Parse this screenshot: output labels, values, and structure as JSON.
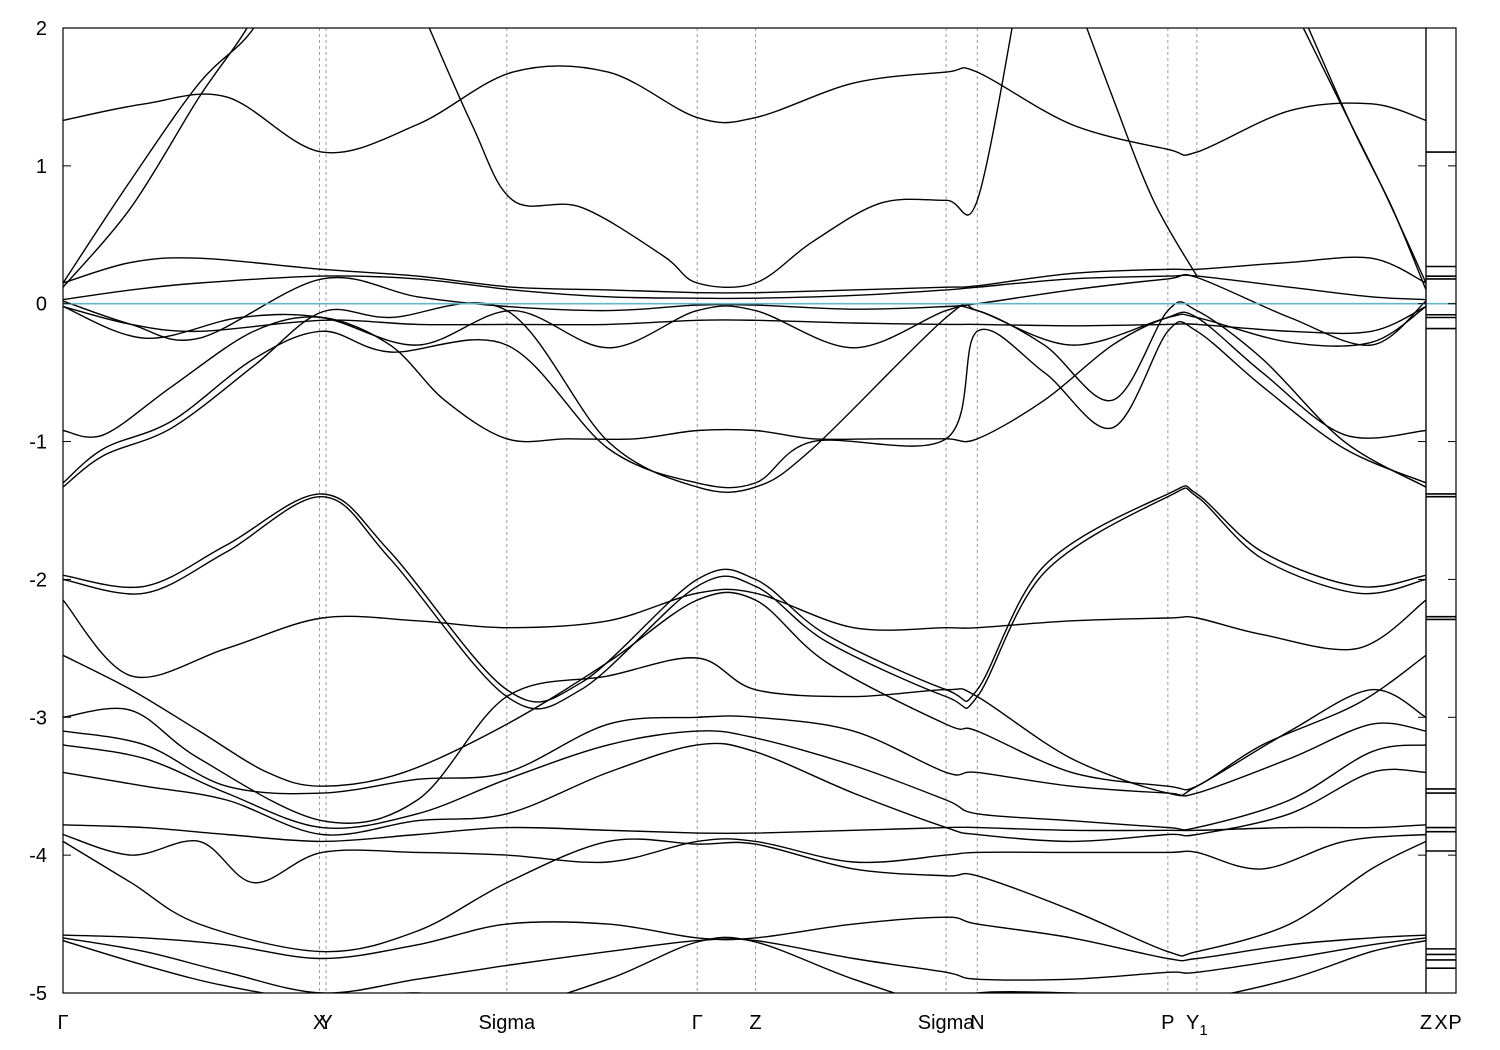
{
  "chart_data": {
    "type": "line",
    "title": "",
    "xlabel": "",
    "ylabel": "",
    "ylim": [
      -5,
      2
    ],
    "y_ticks": [
      2,
      1,
      0,
      -1,
      -2,
      -3,
      -4,
      -5
    ],
    "fermi_level": 0,
    "colors": {
      "bands": "#000000",
      "fermi": "#5fb8c9",
      "kpath_lines": "#9a9a9a"
    },
    "kpoints": [
      {
        "label": "Γ",
        "x": 0.0
      },
      {
        "label": "X",
        "x": 0.1882
      },
      {
        "label": "Y",
        "x": 0.193
      },
      {
        "label": "Sigma",
        "x": 0.3256
      },
      {
        "label": "Γ",
        "x": 0.4653
      },
      {
        "label": "Z",
        "x": 0.5081
      },
      {
        "label": "Sigma",
        "x": 0.6479
      },
      {
        "label": "N",
        "x": 0.6708
      },
      {
        "label": "P",
        "x": 0.8106
      },
      {
        "label": "Y",
        "x": 0.8319,
        "subscript": "1"
      },
      {
        "label": "Z",
        "x": 1.0
      }
    ],
    "dos_panel_labels": [
      "X",
      "P"
    ],
    "dos_levels": [
      1.1,
      0.27,
      0.2,
      0.18,
      -0.08,
      -0.1,
      -0.18,
      -1.38,
      -1.4,
      -2.27,
      -2.29,
      -3.52,
      -3.55,
      -3.8,
      -3.83,
      -3.97,
      -4.68,
      -4.72,
      -4.76,
      -4.82
    ],
    "series": [
      {
        "x": [
          0,
          0.06,
          0.12,
          0.19,
          0.26,
          0.33,
          0.4,
          0.4653,
          0.5081,
          0.58,
          0.6479,
          0.6708,
          0.74,
          0.8106,
          0.8319,
          0.9,
          0.96,
          1.0
        ],
        "y": [
          1.33,
          1.45,
          1.5,
          1.1,
          1.3,
          1.68,
          1.68,
          1.35,
          1.35,
          1.6,
          1.68,
          1.68,
          1.3,
          1.12,
          1.1,
          1.4,
          1.45,
          1.33
        ]
      },
      {
        "x": [
          0,
          0.05,
          0.1,
          0.14,
          0.17
        ],
        "y": [
          0.15,
          0.9,
          1.6,
          2.0,
          2.6
        ]
      },
      {
        "x": [
          0,
          0.05,
          0.1,
          0.135,
          0.16
        ],
        "y": [
          0.12,
          0.7,
          1.5,
          2.0,
          2.5
        ]
      },
      {
        "x": [
          0.26,
          0.3,
          0.33,
          0.38,
          0.44,
          0.4653,
          0.5081,
          0.55,
          0.6,
          0.6479,
          0.6708,
          0.7
        ],
        "y": [
          2.2,
          1.3,
          0.75,
          0.7,
          0.35,
          0.15,
          0.15,
          0.45,
          0.73,
          0.75,
          0.75,
          2.2
        ]
      },
      {
        "x": [
          0.74,
          0.77,
          0.8,
          0.8319
        ],
        "y": [
          2.3,
          1.5,
          0.75,
          0.2
        ]
      },
      {
        "x": [
          0.9,
          0.94,
          0.97,
          1.0
        ],
        "y": [
          2.2,
          1.4,
          0.8,
          0.15
        ]
      },
      {
        "x": [
          0.905,
          0.945,
          0.975,
          1.0
        ],
        "y": [
          2.2,
          1.3,
          0.7,
          0.1
        ]
      },
      {
        "x": [
          0,
          0.05,
          0.1,
          0.19,
          0.26,
          0.33,
          0.4,
          0.4653,
          0.5081,
          0.58,
          0.6479,
          0.6708,
          0.74,
          0.8106,
          0.8319,
          0.9,
          0.96,
          1.0
        ],
        "y": [
          0.15,
          0.3,
          0.33,
          0.25,
          0.2,
          0.12,
          0.1,
          0.08,
          0.08,
          0.1,
          0.12,
          0.13,
          0.22,
          0.25,
          0.25,
          0.3,
          0.33,
          0.15
        ]
      },
      {
        "x": [
          0,
          0.05,
          0.1,
          0.19,
          0.26,
          0.33,
          0.4,
          0.4653,
          0.5081,
          0.58,
          0.6479,
          0.6708,
          0.74,
          0.8106,
          0.8319,
          0.9,
          0.96,
          1.0
        ],
        "y": [
          0.03,
          0.1,
          0.15,
          0.2,
          0.18,
          0.1,
          0.05,
          0.04,
          0.04,
          0.06,
          0.1,
          0.12,
          0.18,
          0.2,
          0.2,
          0.12,
          0.05,
          0.03
        ]
      },
      {
        "x": [
          0,
          0.05,
          0.1,
          0.19,
          0.26,
          0.3256,
          0.4,
          0.4653,
          0.5081,
          0.58,
          0.6479,
          0.6708,
          0.74,
          0.8106,
          0.8319,
          0.9,
          0.96,
          1.0
        ],
        "y": [
          0.02,
          -0.15,
          -0.25,
          0.18,
          0.05,
          -0.02,
          -0.05,
          -0.01,
          -0.01,
          -0.04,
          -0.02,
          0.0,
          0.1,
          0.18,
          0.19,
          -0.1,
          -0.3,
          0.02
        ]
      },
      {
        "x": [
          0,
          0.06,
          0.13,
          0.19,
          0.26,
          0.33,
          0.4,
          0.4653,
          0.5081,
          0.58,
          0.6479,
          0.6708,
          0.74,
          0.8106,
          0.8319,
          0.9,
          0.96,
          1.0
        ],
        "y": [
          -0.02,
          -0.25,
          -0.1,
          -0.1,
          -0.3,
          -0.05,
          -0.32,
          -0.05,
          -0.05,
          -0.32,
          -0.05,
          -0.05,
          -0.3,
          -0.1,
          -0.1,
          -0.28,
          -0.28,
          -0.02
        ]
      },
      {
        "x": [
          0,
          0.05,
          0.1,
          0.19,
          0.26,
          0.3256,
          0.4,
          0.4653,
          0.5081,
          0.58,
          0.6479,
          0.6708,
          0.74,
          0.8106,
          0.8319,
          0.9,
          0.96,
          1.0
        ],
        "y": [
          -0.02,
          -0.15,
          -0.2,
          -0.12,
          -0.15,
          -0.15,
          -0.15,
          -0.12,
          -0.12,
          -0.14,
          -0.15,
          -0.15,
          -0.16,
          -0.15,
          -0.15,
          -0.2,
          -0.2,
          -0.02
        ]
      },
      {
        "x": [
          0,
          0.03,
          0.08,
          0.14,
          0.19,
          0.24,
          0.28,
          0.3256,
          0.37,
          0.42,
          0.4653,
          0.5081,
          0.55,
          0.6,
          0.6479,
          0.6708,
          0.72,
          0.77,
          0.8106,
          0.8319,
          0.88,
          0.94,
          1.0
        ],
        "y": [
          -0.92,
          -0.95,
          -0.6,
          -0.2,
          -0.1,
          -0.3,
          -0.7,
          -0.98,
          -0.98,
          -0.98,
          -0.92,
          -0.92,
          -0.98,
          -0.98,
          -0.98,
          -0.98,
          -0.7,
          -0.3,
          -0.1,
          -0.1,
          -0.5,
          -0.95,
          -0.92
        ]
      },
      {
        "x": [
          0,
          0.03,
          0.08,
          0.14,
          0.19,
          0.24,
          0.3256,
          0.4,
          0.4653,
          0.5081,
          0.55,
          0.6479,
          0.6708,
          0.72,
          0.77,
          0.8106,
          0.8319,
          0.88,
          0.94,
          1.0
        ],
        "y": [
          -1.3,
          -1.05,
          -0.85,
          -0.4,
          -0.2,
          -0.35,
          -0.3,
          -1.05,
          -1.3,
          -1.3,
          -1.0,
          -0.98,
          -0.2,
          -0.5,
          -0.9,
          -0.2,
          -0.2,
          -0.6,
          -1.05,
          -1.3
        ]
      },
      {
        "x": [
          0,
          0.03,
          0.08,
          0.14,
          0.19,
          0.24,
          0.3256,
          0.4,
          0.4653,
          0.5081,
          0.55,
          0.6479,
          0.6708,
          0.72,
          0.77,
          0.8106,
          0.8319,
          0.88,
          0.94,
          1.0
        ],
        "y": [
          -1.33,
          -1.1,
          -0.9,
          -0.45,
          -0.06,
          -0.1,
          -0.05,
          -1.0,
          -1.33,
          -1.33,
          -1.05,
          -0.1,
          -0.05,
          -0.3,
          -0.7,
          -0.05,
          -0.05,
          -0.4,
          -1.0,
          -1.33
        ]
      },
      {
        "x": [
          0,
          0.06,
          0.12,
          0.19,
          0.24,
          0.3256,
          0.38,
          0.4653,
          0.5081,
          0.56,
          0.6479,
          0.6708,
          0.72,
          0.8106,
          0.8319,
          0.88,
          0.95,
          1.0
        ],
        "y": [
          -1.97,
          -2.05,
          -1.75,
          -1.38,
          -1.8,
          -2.8,
          -2.75,
          -2.0,
          -2.0,
          -2.4,
          -2.8,
          -2.8,
          -1.9,
          -1.38,
          -1.38,
          -1.8,
          -2.05,
          -1.97
        ]
      },
      {
        "x": [
          0,
          0.06,
          0.12,
          0.19,
          0.24,
          0.3256,
          0.38,
          0.4653,
          0.5081,
          0.56,
          0.6479,
          0.6708,
          0.72,
          0.8106,
          0.8319,
          0.88,
          0.95,
          1.0
        ],
        "y": [
          -2.0,
          -2.1,
          -1.8,
          -1.4,
          -1.85,
          -2.85,
          -2.8,
          -2.05,
          -2.05,
          -2.45,
          -2.85,
          -2.85,
          -1.95,
          -1.4,
          -1.4,
          -1.85,
          -2.1,
          -2.0
        ]
      },
      {
        "x": [
          0,
          0.05,
          0.12,
          0.19,
          0.26,
          0.3256,
          0.4,
          0.4653,
          0.5081,
          0.58,
          0.6479,
          0.6708,
          0.74,
          0.8106,
          0.8319,
          0.88,
          0.95,
          1.0
        ],
        "y": [
          -2.15,
          -2.7,
          -2.5,
          -2.28,
          -2.3,
          -2.35,
          -2.3,
          -2.1,
          -2.1,
          -2.35,
          -2.35,
          -2.35,
          -2.3,
          -2.28,
          -2.28,
          -2.4,
          -2.5,
          -2.15
        ]
      },
      {
        "x": [
          0,
          0.05,
          0.1,
          0.15,
          0.19,
          0.25,
          0.3256,
          0.4,
          0.4653,
          0.5081,
          0.56,
          0.6479,
          0.6708,
          0.74,
          0.8106,
          0.8319,
          0.88,
          0.95,
          1.0
        ],
        "y": [
          -2.55,
          -2.8,
          -3.1,
          -3.4,
          -3.5,
          -3.4,
          -3.05,
          -2.6,
          -2.15,
          -2.15,
          -2.6,
          -3.05,
          -3.1,
          -3.4,
          -3.5,
          -3.5,
          -3.2,
          -2.9,
          -2.55
        ]
      },
      {
        "x": [
          0,
          0.05,
          0.1,
          0.19,
          0.26,
          0.3256,
          0.4,
          0.4653,
          0.5081,
          0.58,
          0.6479,
          0.6708,
          0.74,
          0.8106,
          0.8319,
          0.9,
          0.96,
          1.0
        ],
        "y": [
          -3.0,
          -2.95,
          -3.3,
          -3.75,
          -3.6,
          -2.85,
          -2.7,
          -2.57,
          -2.8,
          -2.85,
          -2.8,
          -2.85,
          -3.3,
          -3.55,
          -3.5,
          -3.1,
          -2.8,
          -3.0
        ]
      },
      {
        "x": [
          0,
          0.06,
          0.12,
          0.19,
          0.26,
          0.3256,
          0.4,
          0.4653,
          0.5081,
          0.58,
          0.6479,
          0.6708,
          0.74,
          0.8106,
          0.8319,
          0.9,
          0.96,
          1.0
        ],
        "y": [
          -3.1,
          -3.2,
          -3.5,
          -3.55,
          -3.45,
          -3.4,
          -3.05,
          -3.0,
          -3.0,
          -3.1,
          -3.4,
          -3.4,
          -3.5,
          -3.55,
          -3.55,
          -3.3,
          -3.05,
          -3.1
        ]
      },
      {
        "x": [
          0,
          0.06,
          0.12,
          0.19,
          0.26,
          0.3256,
          0.4,
          0.4653,
          0.5081,
          0.58,
          0.6479,
          0.6708,
          0.74,
          0.8106,
          0.8319,
          0.9,
          0.96,
          1.0
        ],
        "y": [
          -3.2,
          -3.3,
          -3.55,
          -3.8,
          -3.7,
          -3.45,
          -3.2,
          -3.1,
          -3.15,
          -3.35,
          -3.6,
          -3.7,
          -3.75,
          -3.8,
          -3.8,
          -3.6,
          -3.25,
          -3.2
        ]
      },
      {
        "x": [
          0,
          0.06,
          0.12,
          0.19,
          0.26,
          0.3256,
          0.4,
          0.4653,
          0.5081,
          0.58,
          0.6479,
          0.6708,
          0.74,
          0.8106,
          0.8319,
          0.9,
          0.96,
          1.0
        ],
        "y": [
          -3.4,
          -3.5,
          -3.6,
          -3.85,
          -3.75,
          -3.7,
          -3.4,
          -3.2,
          -3.25,
          -3.55,
          -3.8,
          -3.85,
          -3.9,
          -3.85,
          -3.85,
          -3.7,
          -3.4,
          -3.4
        ]
      },
      {
        "x": [
          0,
          0.06,
          0.12,
          0.19,
          0.26,
          0.3256,
          0.4,
          0.4653,
          0.5081,
          0.58,
          0.6479,
          0.6708,
          0.74,
          0.8106,
          0.8319,
          0.9,
          0.96,
          1.0
        ],
        "y": [
          -3.78,
          -3.8,
          -3.85,
          -3.9,
          -3.85,
          -3.8,
          -3.82,
          -3.84,
          -3.84,
          -3.82,
          -3.8,
          -3.8,
          -3.82,
          -3.82,
          -3.82,
          -3.8,
          -3.8,
          -3.78
        ]
      },
      {
        "x": [
          0,
          0.05,
          0.1,
          0.14,
          0.19,
          0.26,
          0.3256,
          0.4,
          0.4653,
          0.5081,
          0.58,
          0.6479,
          0.6708,
          0.74,
          0.8106,
          0.8319,
          0.88,
          0.94,
          1.0
        ],
        "y": [
          -3.85,
          -4.0,
          -3.9,
          -4.2,
          -3.98,
          -3.98,
          -4.0,
          -4.05,
          -3.9,
          -3.9,
          -4.05,
          -4.0,
          -3.98,
          -3.98,
          -3.98,
          -3.98,
          -4.1,
          -3.9,
          -3.85
        ]
      },
      {
        "x": [
          0,
          0.05,
          0.1,
          0.19,
          0.26,
          0.3256,
          0.4,
          0.4653,
          0.5081,
          0.58,
          0.6479,
          0.6708,
          0.74,
          0.8106,
          0.8319,
          0.9,
          0.96,
          1.0
        ],
        "y": [
          -3.9,
          -4.2,
          -4.5,
          -4.7,
          -4.55,
          -4.2,
          -3.9,
          -3.92,
          -3.92,
          -4.1,
          -4.15,
          -4.15,
          -4.4,
          -4.7,
          -4.7,
          -4.5,
          -4.1,
          -3.9
        ]
      },
      {
        "x": [
          0,
          0.06,
          0.12,
          0.19,
          0.26,
          0.3256,
          0.4,
          0.4653,
          0.5081,
          0.58,
          0.6479,
          0.6708,
          0.74,
          0.8106,
          0.8319,
          0.9,
          0.96,
          1.0
        ],
        "y": [
          -4.58,
          -4.6,
          -4.65,
          -4.75,
          -4.65,
          -4.5,
          -4.5,
          -4.6,
          -4.6,
          -4.5,
          -4.45,
          -4.5,
          -4.6,
          -4.75,
          -4.75,
          -4.65,
          -4.6,
          -4.58
        ]
      },
      {
        "x": [
          0,
          0.06,
          0.12,
          0.19,
          0.26,
          0.3256,
          0.4,
          0.4653,
          0.5081,
          0.58,
          0.6479,
          0.6708,
          0.74,
          0.8106,
          0.8319,
          0.9,
          0.96,
          1.0
        ],
        "y": [
          -4.6,
          -4.7,
          -4.85,
          -5.0,
          -4.9,
          -4.8,
          -4.7,
          -4.62,
          -4.62,
          -4.75,
          -4.85,
          -4.9,
          -4.9,
          -4.85,
          -4.85,
          -4.75,
          -4.65,
          -4.6
        ]
      },
      {
        "x": [
          0,
          0.06,
          0.12,
          0.19,
          0.26,
          0.3256,
          0.4,
          0.4653,
          0.5081,
          0.58,
          0.6479,
          0.6708,
          0.74,
          0.8106,
          0.8319,
          0.9,
          0.96,
          1.0
        ],
        "y": [
          -4.62,
          -4.8,
          -4.95,
          -5.05,
          -5.0,
          -5.1,
          -4.9,
          -4.63,
          -4.63,
          -4.9,
          -5.1,
          -5.0,
          -5.0,
          -5.05,
          -5.05,
          -4.9,
          -4.7,
          -4.62
        ]
      }
    ]
  }
}
